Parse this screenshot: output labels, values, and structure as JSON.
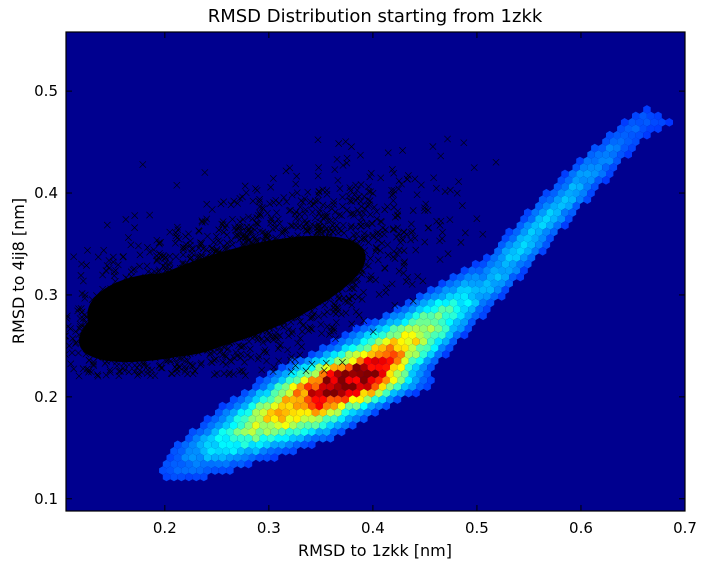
{
  "chart_data": {
    "type": "heatmap",
    "title": "RMSD Distribution starting from 1zkk",
    "xlabel": "RMSD to 1zkk [nm]",
    "ylabel": "RMSD to 4ij8 [nm]",
    "xlim": [
      0.105,
      0.7
    ],
    "ylim": [
      0.088,
      0.558
    ],
    "xticks": [
      "0.2",
      "0.3",
      "0.4",
      "0.5",
      "0.6",
      "0.7"
    ],
    "xtick_values": [
      0.2,
      0.3,
      0.4,
      0.5,
      0.6,
      0.7
    ],
    "yticks": [
      "0.1",
      "0.2",
      "0.3",
      "0.4",
      "0.5"
    ],
    "ytick_values": [
      0.1,
      0.2,
      0.3,
      0.4,
      0.5
    ],
    "grid": false,
    "legend": "none",
    "background_color": "#00008f",
    "colormap": "jet",
    "hexbin_density": {
      "description_points": "ridge of density along diagonal band",
      "ridge": [
        [
          0.19,
          0.125
        ],
        [
          0.25,
          0.155
        ],
        [
          0.31,
          0.185
        ],
        [
          0.36,
          0.205
        ],
        [
          0.41,
          0.235
        ],
        [
          0.46,
          0.27
        ],
        [
          0.51,
          0.31
        ],
        [
          0.55,
          0.355
        ],
        [
          0.6,
          0.41
        ],
        [
          0.66,
          0.47
        ]
      ],
      "peak": [
        0.385,
        0.215
      ]
    },
    "overlay_scatter": {
      "marker": "x",
      "color": "#000000",
      "center": [
        0.26,
        0.3
      ],
      "x_extent": [
        0.105,
        0.52
      ],
      "y_extent": [
        0.22,
        0.47
      ]
    }
  }
}
